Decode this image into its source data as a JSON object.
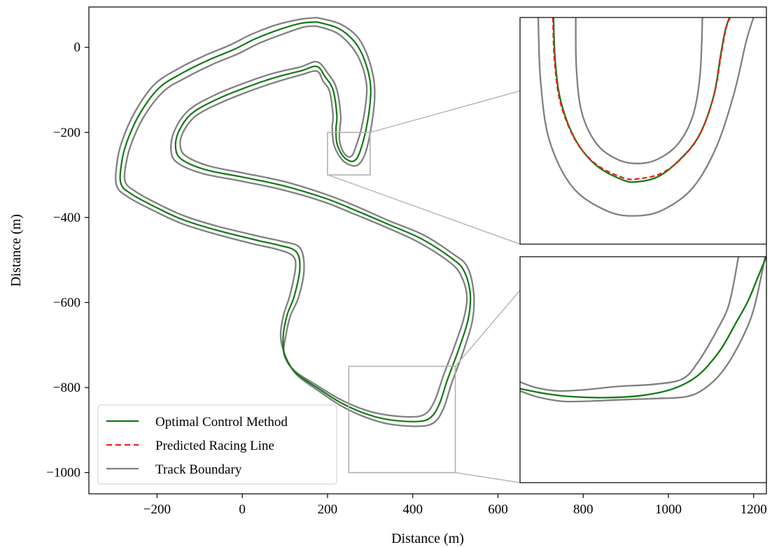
{
  "chart_data": {
    "type": "line",
    "title": "",
    "xlabel": "Distance (m)",
    "ylabel": "Distance (m)",
    "xlim": [
      -360,
      1230
    ],
    "ylim": [
      -1050,
      95
    ],
    "xticks": [
      -200,
      0,
      200,
      400,
      600,
      800,
      1000,
      1200
    ],
    "yticks": [
      0,
      -200,
      -400,
      -600,
      -800,
      -1000
    ],
    "xtick_labels": [
      "−200",
      "0",
      "200",
      "400",
      "600",
      "800",
      "1000",
      "1200"
    ],
    "ytick_labels": [
      "0",
      "−200",
      "−400",
      "−600",
      "−800",
      "−1000"
    ],
    "grid": false,
    "legend_position": "lower-left",
    "legend": [
      {
        "label": "Optimal Control Method",
        "color": "#117a11",
        "style": "solid"
      },
      {
        "label": "Predicted Racing Line",
        "color": "#e8221c",
        "style": "dashed"
      },
      {
        "label": "Track Boundary",
        "color": "#808080",
        "style": "solid"
      }
    ],
    "series": [
      {
        "name": "Optimal Control Method",
        "color": "#117a11",
        "x": [
          175,
          225,
          262,
          285,
          300,
          300,
          290,
          278,
          268,
          255,
          236,
          222,
          220,
          222,
          213,
          195,
          175,
          138,
          80,
          20,
          -55,
          -118,
          -150,
          -156,
          -140,
          -85,
          0,
          95,
          195,
          270,
          340,
          420,
          490,
          520,
          535,
          530,
          508,
          482,
          462,
          440,
          405,
          340,
          285,
          230,
          175,
          125,
          100,
          96,
          105,
          122,
          135,
          126,
          85,
          40,
          -60,
          -140,
          -205,
          -260,
          -285,
          -283,
          -270,
          -240,
          -195,
          -140,
          -80,
          -20,
          30,
          90,
          140,
          175
        ],
        "y": [
          60,
          45,
          15,
          -25,
          -80,
          -130,
          -195,
          -240,
          -262,
          -268,
          -255,
          -225,
          -190,
          -160,
          -100,
          -70,
          -45,
          -55,
          -70,
          -90,
          -120,
          -155,
          -200,
          -240,
          -265,
          -288,
          -305,
          -325,
          -355,
          -385,
          -415,
          -450,
          -495,
          -525,
          -580,
          -640,
          -710,
          -780,
          -840,
          -872,
          -880,
          -875,
          -860,
          -835,
          -800,
          -765,
          -725,
          -680,
          -630,
          -585,
          -520,
          -480,
          -465,
          -455,
          -430,
          -405,
          -375,
          -345,
          -320,
          -270,
          -220,
          -155,
          -95,
          -60,
          -30,
          -5,
          20,
          43,
          57,
          60
        ]
      },
      {
        "name": "Track Boundary",
        "color": "#808080",
        "x": [
          175,
          230,
          270,
          294,
          309,
          310,
          301,
          290,
          278,
          262,
          236,
          216,
          211,
          213,
          205,
          190,
          175,
          140,
          84,
          25,
          -48,
          -110,
          -140,
          -145,
          -130,
          -78,
          5,
          100,
          200,
          275,
          345,
          425,
          495,
          528,
          543,
          540,
          518,
          492,
          472,
          449,
          412,
          345,
          287,
          232,
          178,
          128,
          102,
          90,
          97,
          112,
          125,
          117,
          78,
          33,
          -63,
          -143,
          -210,
          -268,
          -295,
          -294,
          -282,
          -252,
          -207,
          -150,
          -90,
          -30,
          20,
          80,
          135,
          175
        ],
        "y": [
          70,
          55,
          25,
          -20,
          -78,
          -130,
          -197,
          -245,
          -270,
          -279,
          -266,
          -232,
          -190,
          -160,
          -104,
          -80,
          -56,
          -64,
          -80,
          -100,
          -129,
          -162,
          -202,
          -235,
          -257,
          -279,
          -296,
          -316,
          -347,
          -377,
          -408,
          -441,
          -486,
          -516,
          -577,
          -643,
          -717,
          -788,
          -850,
          -883,
          -891,
          -886,
          -869,
          -843,
          -807,
          -770,
          -728,
          -681,
          -629,
          -582,
          -517,
          -489,
          -474,
          -464,
          -439,
          -414,
          -383,
          -352,
          -325,
          -271,
          -220,
          -152,
          -88,
          -50,
          -20,
          5,
          30,
          53,
          66,
          70
        ]
      },
      {
        "name": "Track Boundary",
        "color": "#808080",
        "x": [
          175,
          220,
          254,
          276,
          291,
          290,
          279,
          266,
          258,
          248,
          236,
          228,
          229,
          231,
          221,
          200,
          175,
          136,
          76,
          15,
          -62,
          -126,
          -160,
          -167,
          -150,
          -92,
          -5,
          90,
          190,
          265,
          335,
          415,
          485,
          512,
          527,
          520,
          498,
          472,
          452,
          431,
          398,
          335,
          283,
          228,
          172,
          122,
          98,
          102,
          113,
          132,
          145,
          135,
          92,
          47,
          -57,
          -137,
          -200,
          -252,
          -275,
          -272,
          -258,
          -228,
          -183,
          -130,
          -70,
          -10,
          40,
          100,
          145,
          175
        ],
        "y": [
          50,
          35,
          5,
          -30,
          -82,
          -130,
          -193,
          -235,
          -254,
          -257,
          -244,
          -218,
          -190,
          -160,
          -96,
          -60,
          -34,
          -46,
          -60,
          -80,
          -111,
          -148,
          -198,
          -245,
          -273,
          -297,
          -314,
          -334,
          -363,
          -393,
          -422,
          -459,
          -504,
          -534,
          -583,
          -637,
          -703,
          -772,
          -830,
          -861,
          -869,
          -864,
          -851,
          -827,
          -793,
          -760,
          -722,
          -679,
          -631,
          -588,
          -523,
          -471,
          -456,
          -446,
          -421,
          -396,
          -367,
          -338,
          -315,
          -269,
          -220,
          -158,
          -102,
          -70,
          -40,
          -15,
          10,
          33,
          48,
          50
        ]
      }
    ],
    "zoom_regions": [
      {
        "xlim": [
          200,
          300
        ],
        "ylim": [
          -300,
          -200
        ]
      },
      {
        "xlim": [
          250,
          500
        ],
        "ylim": [
          -1000,
          -750
        ]
      }
    ],
    "inset1_series": [
      {
        "name": "Optimal Control Method",
        "color": "#117a11",
        "style": "solid",
        "x": [
          762,
          765,
          775,
          800,
          835,
          880,
          905,
          940,
          975,
          1010,
          1035,
          1047,
          1055,
          1062
        ],
        "y": [
          20,
          -50,
          -115,
          -175,
          -215,
          -238,
          -241,
          -233,
          -208,
          -168,
          -105,
          -40,
          0,
          20
        ]
      },
      {
        "name": "Predicted Racing Line",
        "color": "#e8221c",
        "style": "dashed",
        "x": [
          761,
          764,
          774,
          800,
          836,
          882,
          908,
          945,
          980,
          1012,
          1036,
          1048,
          1056,
          1063
        ],
        "y": [
          20,
          -50,
          -116,
          -176,
          -214,
          -235,
          -236,
          -228,
          -204,
          -165,
          -102,
          -38,
          2,
          20
        ]
      },
      {
        "name": "Track Boundary",
        "color": "#808080",
        "style": "solid",
        "x": [
          736,
          740,
          755,
          795,
          855,
          905,
          950,
          1000,
          1040,
          1070,
          1090,
          1103
        ],
        "y": [
          20,
          -80,
          -175,
          -250,
          -288,
          -295,
          -285,
          -250,
          -185,
          -100,
          -20,
          20
        ]
      },
      {
        "name": "Track Boundary",
        "color": "#808080",
        "style": "solid",
        "x": [
          800,
          801,
          810,
          835,
          870,
          905,
          940,
          975,
          1000,
          1012,
          1016
        ],
        "y": [
          20,
          -60,
          -130,
          -180,
          -205,
          -212,
          -205,
          -180,
          -135,
          -70,
          20
        ]
      }
    ],
    "inset2_series": [
      {
        "name": "Optimal Control Method",
        "color": "#117a11",
        "style": "solid",
        "x": [
          743,
          780,
          820,
          880,
          940,
          990,
          1030,
          1065,
          1090,
          1110,
          1125,
          1140
        ],
        "y": [
          -150,
          -160,
          -167,
          -170,
          -165,
          -150,
          -120,
          -65,
          -5,
          45,
          95,
          145
        ]
      },
      {
        "name": "Track Boundary",
        "color": "#808080",
        "style": "solid",
        "x": [
          743,
          770,
          805,
          850,
          900,
          960,
          1005,
          1030,
          1060,
          1080,
          1095
        ],
        "y": [
          -135,
          -148,
          -155,
          -152,
          -145,
          -140,
          -128,
          -90,
          -20,
          40,
          145
        ]
      },
      {
        "name": "Track Boundary",
        "color": "#808080",
        "style": "solid",
        "x": [
          743,
          770,
          810,
          850,
          900,
          960,
          1010,
          1040,
          1070,
          1100,
          1120,
          1138
        ],
        "y": [
          -155,
          -168,
          -178,
          -178,
          -175,
          -172,
          -168,
          -150,
          -110,
          -40,
          30,
          145
        ]
      }
    ]
  }
}
